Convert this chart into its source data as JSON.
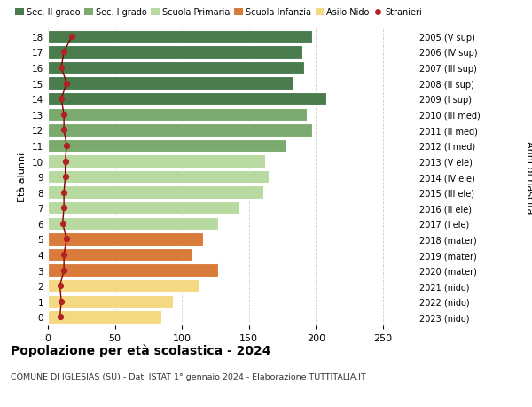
{
  "ages": [
    18,
    17,
    16,
    15,
    14,
    13,
    12,
    11,
    10,
    9,
    8,
    7,
    6,
    5,
    4,
    3,
    2,
    1,
    0
  ],
  "values": [
    197,
    190,
    191,
    183,
    208,
    193,
    197,
    178,
    162,
    165,
    161,
    143,
    127,
    116,
    108,
    127,
    113,
    93,
    85
  ],
  "stranieri": [
    18,
    12,
    10,
    14,
    10,
    12,
    12,
    14,
    13,
    13,
    12,
    12,
    11,
    14,
    12,
    12,
    9,
    10,
    9
  ],
  "right_labels": [
    "2005 (V sup)",
    "2006 (IV sup)",
    "2007 (III sup)",
    "2008 (II sup)",
    "2009 (I sup)",
    "2010 (III med)",
    "2011 (II med)",
    "2012 (I med)",
    "2013 (V ele)",
    "2014 (IV ele)",
    "2015 (III ele)",
    "2016 (II ele)",
    "2017 (I ele)",
    "2018 (mater)",
    "2019 (mater)",
    "2020 (mater)",
    "2021 (nido)",
    "2022 (nido)",
    "2023 (nido)"
  ],
  "bar_colors": [
    "#4a7c4e",
    "#4a7c4e",
    "#4a7c4e",
    "#4a7c4e",
    "#4a7c4e",
    "#7aaa6e",
    "#7aaa6e",
    "#7aaa6e",
    "#b8d9a0",
    "#b8d9a0",
    "#b8d9a0",
    "#b8d9a0",
    "#b8d9a0",
    "#d97b3a",
    "#d97b3a",
    "#d97b3a",
    "#f5d882",
    "#f5d882",
    "#f5d882"
  ],
  "legend_labels": [
    "Sec. II grado",
    "Sec. I grado",
    "Scuola Primaria",
    "Scuola Infanzia",
    "Asilo Nido",
    "Stranieri"
  ],
  "legend_colors": [
    "#4a7c4e",
    "#7aaa6e",
    "#b8d9a0",
    "#d97b3a",
    "#f5d882",
    "#b22222"
  ],
  "ylabel": "Età alunni",
  "right_ylabel": "Anni di nascita",
  "title": "Popolazione per età scolastica - 2024",
  "subtitle": "COMUNE DI IGLESIAS (SU) - Dati ISTAT 1° gennaio 2024 - Elaborazione TUTTITALIA.IT",
  "xlim": [
    0,
    270
  ],
  "xticks": [
    0,
    50,
    100,
    150,
    200,
    250
  ],
  "stranieri_color": "#b22222",
  "stranieri_line_color": "#8b0000",
  "grid_color": "#cccccc"
}
